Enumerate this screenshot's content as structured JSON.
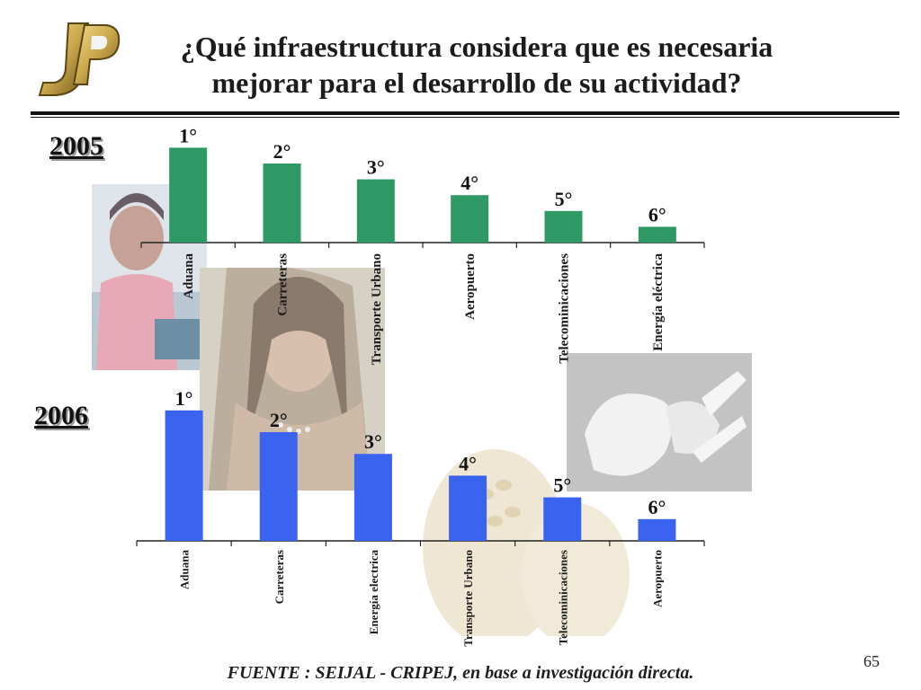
{
  "title": {
    "line1": "¿Qué infraestructura considera que es necesaria",
    "line2": "mejorar para el desarrollo de su actividad?"
  },
  "logo": {
    "text": "JP",
    "color": "#c9a64a"
  },
  "chart_data": [
    {
      "type": "bar",
      "year_label": "2005",
      "color": "#2e9964",
      "categories": [
        "Aduana",
        "Carreteras",
        "Transporte Urbano",
        "Aeropuerto",
        "Telecominicaciones",
        "Energía eléctrica"
      ],
      "values": [
        6,
        5,
        4,
        3,
        2,
        1
      ],
      "data_labels": [
        "1°",
        "2°",
        "3°",
        "4°",
        "5°",
        "6°"
      ]
    },
    {
      "type": "bar",
      "year_label": "2006",
      "color": "#3a64f0",
      "categories": [
        "Aduana",
        "Carreteras",
        "Energía electrica",
        "Transporte Urbano",
        "Telecominicaciones",
        "Aeropuerto"
      ],
      "values": [
        6,
        5,
        4,
        3,
        2,
        1
      ],
      "data_labels": [
        "1°",
        "2°",
        "3°",
        "4°",
        "5°",
        "6°"
      ]
    }
  ],
  "footer": {
    "source": "FUENTE :  SEIJAL - CRIPEJ,  en base a investigación directa.",
    "page_number": "65"
  }
}
